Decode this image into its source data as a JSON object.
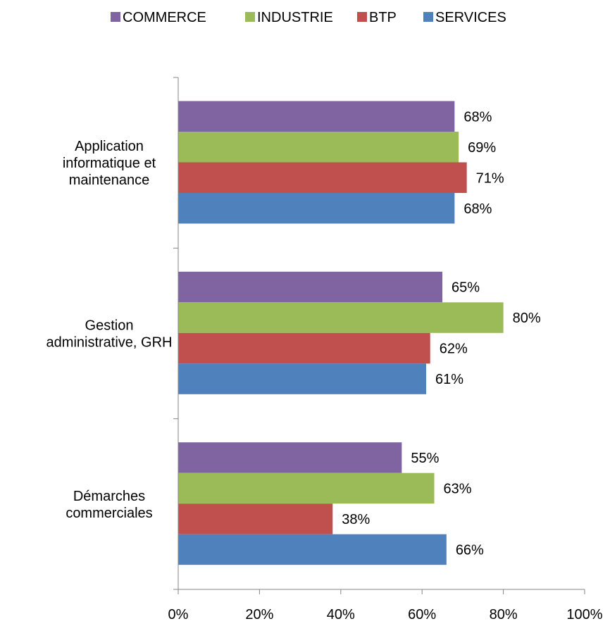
{
  "chart_data": {
    "type": "bar",
    "orientation": "horizontal",
    "categories": [
      [
        "Application",
        "informatique et",
        "maintenance"
      ],
      [
        "Gestion",
        "administrative, GRH"
      ],
      [
        "Démarches",
        "commerciales"
      ]
    ],
    "series": [
      {
        "name": "COMMERCE",
        "color": "#8064a2",
        "values": [
          68,
          65,
          55
        ],
        "labels": [
          "68%",
          "65%",
          "55%"
        ]
      },
      {
        "name": "INDUSTRIE",
        "color": "#9bbb59",
        "values": [
          69,
          80,
          63
        ],
        "labels": [
          "69%",
          "80%",
          "63%"
        ]
      },
      {
        "name": "BTP",
        "color": "#c0504d",
        "values": [
          71,
          62,
          38
        ],
        "labels": [
          "71%",
          "62%",
          "38%"
        ]
      },
      {
        "name": "SERVICES",
        "color": "#4f81bd",
        "values": [
          68,
          61,
          66
        ],
        "labels": [
          "68%",
          "61%",
          "66%"
        ]
      }
    ],
    "xlim": [
      0,
      100
    ],
    "x_ticks": [
      "0%",
      "20%",
      "40%",
      "60%",
      "80%",
      "100%"
    ],
    "legend_position": "top",
    "grid": false
  }
}
